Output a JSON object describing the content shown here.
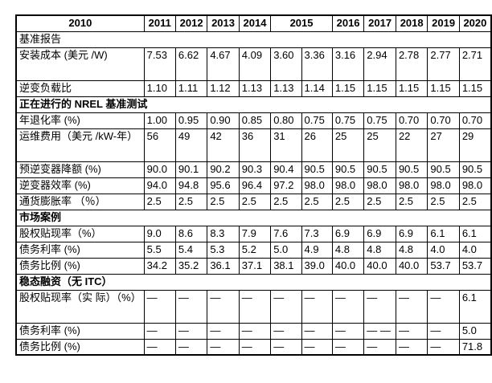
{
  "colors": {
    "border": "#000000",
    "text": "#000000",
    "background": "#ffffff"
  },
  "table": {
    "header": {
      "label_col": "2010",
      "years": [
        {
          "label": "2011",
          "colspan": 1
        },
        {
          "label": "2012",
          "colspan": 1
        },
        {
          "label": "2013",
          "colspan": 1
        },
        {
          "label": "2014",
          "colspan": 1
        },
        {
          "label": "2015",
          "colspan": 2
        },
        {
          "label": "2016",
          "colspan": 1
        },
        {
          "label": "2017",
          "colspan": 1
        },
        {
          "label": "2018",
          "colspan": 1
        },
        {
          "label": "2019",
          "colspan": 1
        },
        {
          "label": "2020",
          "colspan": 1
        }
      ]
    },
    "sections": [
      {
        "title": "基准报告",
        "bold": false,
        "rows": [
          {
            "label": "安装成本 (美元\n/W)",
            "values": [
              "7.53",
              "6.62",
              "4.67",
              "4.09",
              "3.60",
              "3.36",
              "3.16",
              "2.94",
              "2.78",
              "2.77",
              "2.71"
            ]
          },
          {
            "label": "逆变负载比",
            "values": [
              "1.10",
              "1.11",
              "1.12",
              "1.13",
              "1.13",
              "1.14",
              "1.15",
              "1.15",
              "1.15",
              "1.15",
              "1.15"
            ]
          }
        ]
      },
      {
        "title": "正在进行的 NREL 基准测试",
        "bold": true,
        "rows": [
          {
            "label": "年退化率 (%)",
            "values": [
              "1.00",
              "0.95",
              "0.90",
              "0.85",
              "0.80",
              "0.75",
              "0.75",
              "0.75",
              "0.70",
              "0.70",
              "0.70"
            ]
          },
          {
            "label": "运维费用（美元\n/kW-年）",
            "values": [
              "56",
              "49",
              "42",
              "36",
              "31",
              "26",
              "25",
              "25",
              "22",
              "27",
              "29"
            ]
          },
          {
            "label": "预逆变器降额 (%)",
            "values": [
              "90.0",
              "90.1",
              "90.2",
              "90.3",
              "90.4",
              "90.5",
              "90.5",
              "90.5",
              "90.5",
              "90.5",
              "90.5"
            ]
          },
          {
            "label": "逆变器效率 (%)",
            "values": [
              "94.0",
              "94.8",
              "95.6",
              "96.4",
              "97.2",
              "98.0",
              "98.0",
              "98.0",
              "98.0",
              "98.0",
              "98.0"
            ]
          },
          {
            "label": "通货膨胀率 （％）",
            "values": [
              "2.5",
              "2.5",
              "2.5",
              "2.5",
              "2.5",
              "2.5",
              "2.5",
              "2.5",
              "2.5",
              "2.5",
              "2.5"
            ]
          }
        ]
      },
      {
        "title": "市场案例",
        "bold": true,
        "rows": [
          {
            "label": "股权贴现率（%）",
            "values": [
              "9.0",
              "8.6",
              "8.3",
              "7.9",
              "7.6",
              "7.3",
              "6.9",
              "6.9",
              "6.9",
              "6.1",
              "6.1"
            ]
          },
          {
            "label": "债务利率 (%)",
            "values": [
              "5.5",
              "5.4",
              "5.3",
              "5.2",
              "5.0",
              "4.9",
              "4.8",
              "4.8",
              "4.8",
              "4.0",
              "4.0"
            ]
          },
          {
            "label": "债务比例 (%)",
            "values": [
              "34.2",
              "35.2",
              "36.1",
              "37.1",
              "38.1",
              "39.0",
              "40.0",
              "40.0",
              "40.0",
              "53.7",
              "53.7"
            ]
          }
        ]
      },
      {
        "title": "稳态融资（无 ITC）",
        "bold": true,
        "rows": [
          {
            "label": "股权贴现率（实\n际）（%）",
            "values": [
              "—",
              "—",
              "—",
              "—",
              "—",
              "—",
              "—",
              "—",
              "—",
              "—",
              "6.1"
            ]
          },
          {
            "label": "债务利率 (%)",
            "values": [
              "—",
              "—",
              "—",
              "—",
              "—",
              "—",
              "—",
              "— —",
              "—",
              "—",
              "5.0"
            ]
          },
          {
            "label": "债务比例 (%)",
            "values": [
              "—",
              "—",
              "—",
              "—",
              "—",
              "—",
              "—",
              "—",
              "—",
              "—",
              "71.8"
            ]
          }
        ]
      }
    ]
  }
}
